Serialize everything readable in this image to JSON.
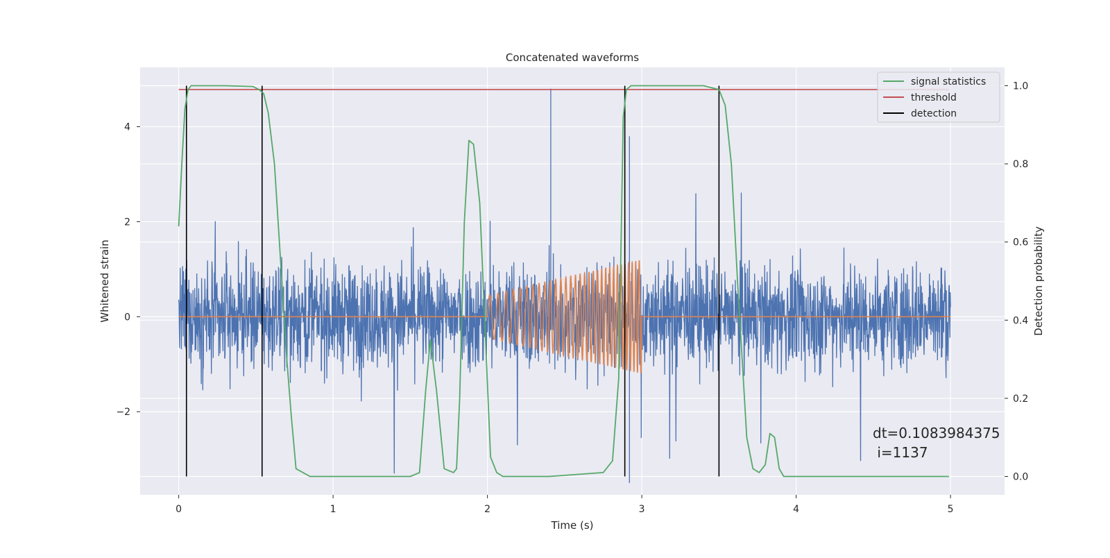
{
  "chart_data": {
    "type": "line",
    "title": "Concatenated waveforms",
    "xlabel": "Time (s)",
    "ylabel": "Whitened strain",
    "y2label": "Detection probability",
    "xlim": [
      -0.25,
      5.35
    ],
    "ylim": [
      -3.75,
      5.25
    ],
    "y2lim": [
      -0.047,
      1.047
    ],
    "xticks": [
      0,
      1,
      2,
      3,
      4,
      5
    ],
    "yticks": [
      -2,
      0,
      2,
      4
    ],
    "y2ticks": [
      0.0,
      0.2,
      0.4,
      0.6,
      0.8,
      1.0
    ],
    "xtick_labels": [
      "0",
      "1",
      "2",
      "3",
      "4",
      "5"
    ],
    "ytick_labels": [
      "−2",
      "0",
      "2",
      "4"
    ],
    "y2tick_labels": [
      "0.0",
      "0.2",
      "0.4",
      "0.6",
      "0.8",
      "1.0"
    ],
    "grid": true,
    "legend_position": "top-right",
    "legend": [
      {
        "label": "signal statistics",
        "color": "#55a868"
      },
      {
        "label": "threshold",
        "color": "#c44e52"
      },
      {
        "label": "detection",
        "color": "#000000"
      }
    ],
    "series": [
      {
        "kind": "noise",
        "axis": "left",
        "color": "#4c72b0",
        "x_range": [
          0,
          5
        ],
        "approx_range": [
          -3.3,
          3.6
        ],
        "notable_spikes": [
          {
            "x": 2.41,
            "y": 4.8
          },
          {
            "x": 2.92,
            "y": 3.8
          },
          {
            "x": 2.92,
            "y": -3.5
          }
        ]
      },
      {
        "kind": "chirp",
        "axis": "left",
        "color": "#dd8452",
        "baseline": 0,
        "chirp_start": 2.0,
        "chirp_end": 3.0,
        "amplitude_start": 0.45,
        "amplitude_end": 1.2
      },
      {
        "name": "signal statistics",
        "axis": "right",
        "color": "#55a868",
        "x": [
          0.0,
          0.02,
          0.04,
          0.06,
          0.08,
          0.12,
          0.3,
          0.48,
          0.52,
          0.55,
          0.58,
          0.62,
          0.66,
          0.7,
          0.73,
          0.76,
          0.85,
          1.5,
          1.56,
          1.6,
          1.63,
          1.67,
          1.72,
          1.78,
          1.8,
          1.82,
          1.85,
          1.88,
          1.91,
          1.95,
          2.02,
          2.06,
          2.1,
          2.4,
          2.75,
          2.81,
          2.85,
          2.88,
          2.9,
          2.93,
          3.0,
          3.4,
          3.5,
          3.54,
          3.58,
          3.62,
          3.65,
          3.68,
          3.72,
          3.76,
          3.8,
          3.83,
          3.86,
          3.89,
          3.92,
          3.96,
          4.0,
          4.5,
          4.99
        ],
        "values": [
          0.64,
          0.8,
          0.94,
          0.99,
          1.0,
          1.0,
          1.0,
          0.998,
          0.99,
          0.98,
          0.93,
          0.8,
          0.55,
          0.3,
          0.15,
          0.02,
          0.0,
          0.0,
          0.01,
          0.22,
          0.35,
          0.22,
          0.02,
          0.01,
          0.02,
          0.2,
          0.65,
          0.86,
          0.85,
          0.7,
          0.05,
          0.01,
          0.0,
          0.0,
          0.01,
          0.04,
          0.25,
          0.92,
          0.99,
          1.0,
          1.0,
          1.0,
          0.99,
          0.95,
          0.8,
          0.5,
          0.3,
          0.1,
          0.02,
          0.01,
          0.03,
          0.11,
          0.1,
          0.02,
          0.0,
          0.0,
          0.0,
          0.0,
          0.0
        ]
      },
      {
        "name": "threshold",
        "axis": "right",
        "color": "#c44e52",
        "x": [
          0,
          4.99
        ],
        "values": [
          0.99,
          0.99
        ]
      }
    ],
    "detections": [
      0.05,
      0.54,
      2.89,
      3.5
    ],
    "annotation": [
      "dt=0.1083984375",
      " i=1137"
    ]
  }
}
